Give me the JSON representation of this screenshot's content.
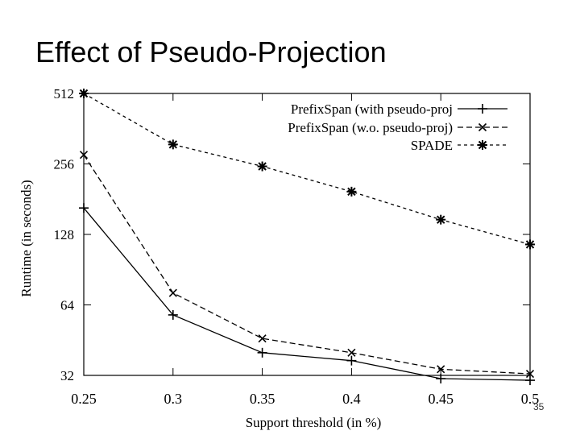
{
  "slide": {
    "title": "Effect of Pseudo-Projection",
    "page_number": "35"
  },
  "chart_data": {
    "type": "line",
    "xlabel": "Support threshold (in %)",
    "ylabel": "Runtime (in seconds)",
    "x": [
      0.25,
      0.3,
      0.35,
      0.4,
      0.45,
      0.5
    ],
    "x_tick_labels": [
      "0.25",
      "0.3",
      "0.35",
      "0.4",
      "0.45",
      "0.5"
    ],
    "y_ticks": [
      32,
      64,
      128,
      256,
      512
    ],
    "y_tick_labels": [
      "32",
      "64",
      "128",
      "256",
      "512"
    ],
    "ylim": [
      32,
      512
    ],
    "xlim": [
      0.25,
      0.5
    ],
    "y_scale": "log2",
    "grid": false,
    "legend_position": "top-right",
    "series": [
      {
        "name": "PrefixSpan (with pseudo-proj",
        "marker": "plus",
        "dash": "solid",
        "values": [
          166,
          58,
          40,
          37,
          31,
          30.5
        ]
      },
      {
        "name": "PrefixSpan (w.o. pseudo-proj)",
        "marker": "cross",
        "dash": "dashed",
        "values": [
          280,
          72,
          46,
          40,
          34,
          32.5
        ]
      },
      {
        "name": "SPADE",
        "marker": "star",
        "dash": "dotted",
        "values": [
          512,
          310,
          250,
          195,
          148,
          116
        ]
      }
    ]
  }
}
